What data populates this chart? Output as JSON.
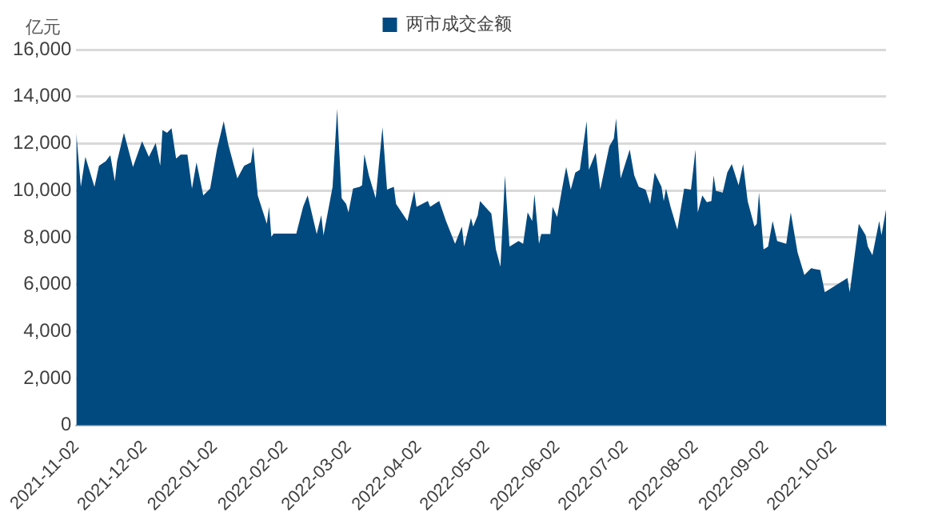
{
  "chart_data": {
    "type": "area",
    "ylabel": "亿元",
    "legend": "top",
    "grid": "y",
    "x": [
      "2021-11-02",
      "2021-11-04",
      "2021-11-06",
      "2021-11-10",
      "2021-11-12",
      "2021-11-15",
      "2021-11-17",
      "2021-11-19",
      "2021-11-20",
      "2021-11-23",
      "2021-11-27",
      "2021-12-01",
      "2021-12-04",
      "2021-12-07",
      "2021-12-09",
      "2021-12-10",
      "2021-12-12",
      "2021-12-14",
      "2021-12-16",
      "2021-12-18",
      "2021-12-21",
      "2021-12-23",
      "2021-12-25",
      "2021-12-28",
      "2021-12-31",
      "2022-01-03",
      "2022-01-06",
      "2022-01-08",
      "2022-01-12",
      "2022-01-15",
      "2022-01-18",
      "2022-01-19",
      "2022-01-21",
      "2022-01-25",
      "2022-01-26",
      "2022-01-27",
      "2022-01-28",
      "2022-02-07",
      "2022-02-10",
      "2022-02-12",
      "2022-02-16",
      "2022-02-18",
      "2022-02-19",
      "2022-02-23",
      "2022-02-25",
      "2022-02-27",
      "2022-03-01",
      "2022-03-02",
      "2022-03-04",
      "2022-03-07",
      "2022-03-08",
      "2022-03-09",
      "2022-03-11",
      "2022-03-14",
      "2022-03-17",
      "2022-03-19",
      "2022-03-22",
      "2022-03-23",
      "2022-03-28",
      "2022-03-31",
      "2022-04-01",
      "2022-04-06",
      "2022-04-07",
      "2022-04-11",
      "2022-04-14",
      "2022-04-18",
      "2022-04-21",
      "2022-04-22",
      "2022-04-25",
      "2022-04-26",
      "2022-04-28",
      "2022-04-29",
      "2022-05-04",
      "2022-05-06",
      "2022-05-08",
      "2022-05-10",
      "2022-05-12",
      "2022-05-16",
      "2022-05-18",
      "2022-05-20",
      "2022-05-22",
      "2022-05-23",
      "2022-05-25",
      "2022-05-26",
      "2022-05-30",
      "2022-05-31",
      "2022-06-02",
      "2022-06-05",
      "2022-06-06",
      "2022-06-08",
      "2022-06-10",
      "2022-06-12",
      "2022-06-15",
      "2022-06-16",
      "2022-06-19",
      "2022-06-21",
      "2022-06-25",
      "2022-06-27",
      "2022-06-28",
      "2022-06-30",
      "2022-07-04",
      "2022-07-06",
      "2022-07-08",
      "2022-07-11",
      "2022-07-13",
      "2022-07-15",
      "2022-07-18",
      "2022-07-19",
      "2022-07-20",
      "2022-07-22",
      "2022-07-25",
      "2022-07-28",
      "2022-07-31",
      "2022-08-02",
      "2022-08-03",
      "2022-08-05",
      "2022-08-07",
      "2022-08-09",
      "2022-08-10",
      "2022-08-11",
      "2022-08-14",
      "2022-08-16",
      "2022-08-18",
      "2022-08-21",
      "2022-08-23",
      "2022-08-25",
      "2022-08-28",
      "2022-08-29",
      "2022-08-30",
      "2022-09-01",
      "2022-09-03",
      "2022-09-05",
      "2022-09-07",
      "2022-09-11",
      "2022-09-13",
      "2022-09-16",
      "2022-09-19",
      "2022-09-22",
      "2022-09-26",
      "2022-09-28",
      "2022-10-08",
      "2022-10-09",
      "2022-10-11",
      "2022-10-13",
      "2022-10-16",
      "2022-10-17",
      "2022-10-19",
      "2022-10-22",
      "2022-10-23",
      "2022-10-25"
    ],
    "series": [
      {
        "name": "两市成交金额",
        "color": "#004a80",
        "values": [
          12460,
          10160,
          11440,
          10160,
          11050,
          11250,
          11500,
          10400,
          11250,
          12460,
          11000,
          12100,
          11440,
          12020,
          11050,
          12580,
          12460,
          12650,
          11360,
          11530,
          11530,
          10080,
          11200,
          9790,
          10080,
          11740,
          12950,
          11960,
          10520,
          11050,
          11200,
          11880,
          9790,
          8580,
          9310,
          8030,
          8170,
          8170,
          9310,
          9790,
          8150,
          8950,
          8100,
          10160,
          13480,
          9670,
          9430,
          9070,
          10080,
          10160,
          10230,
          11540,
          10640,
          9670,
          12700,
          10040,
          10160,
          9430,
          8700,
          9990,
          9310,
          9550,
          9310,
          9550,
          8700,
          7730,
          8460,
          7610,
          8830,
          8460,
          8950,
          9550,
          9020,
          7490,
          6760,
          10640,
          7610,
          7850,
          7730,
          9070,
          8700,
          9840,
          7730,
          8150,
          8150,
          9310,
          8870,
          10520,
          11000,
          10040,
          10760,
          10880,
          12950,
          10880,
          11610,
          10040,
          11880,
          12220,
          13070,
          10520,
          11740,
          10640,
          10160,
          10040,
          9430,
          10760,
          10160,
          9550,
          10080,
          9310,
          8340,
          10080,
          10040,
          11740,
          9070,
          9790,
          9500,
          9550,
          10640,
          9990,
          9910,
          10760,
          11130,
          10230,
          11130,
          9550,
          8460,
          8580,
          9910,
          7490,
          7610,
          8700,
          7850,
          7730,
          9070,
          7370,
          6400,
          6690,
          6620,
          5670,
          6280,
          5670,
          7130,
          8580,
          8100,
          7610,
          7250,
          8700,
          8100,
          9190
        ]
      }
    ],
    "xlim": [
      "2021-11-02",
      "2022-10-25"
    ],
    "xticks": [
      "2021-11-02",
      "2021-12-02",
      "2022-01-02",
      "2022-02-02",
      "2022-03-02",
      "2022-04-02",
      "2022-05-02",
      "2022-06-02",
      "2022-07-02",
      "2022-08-02",
      "2022-09-02",
      "2022-10-02"
    ],
    "ylim": [
      0,
      16000
    ],
    "yticks": [
      0,
      {
        "value": 2000,
        "label": "2,000"
      },
      {
        "value": 4000,
        "label": "4,000"
      },
      {
        "value": 6000,
        "label": "6,000"
      },
      {
        "value": 8000,
        "label": "8,000"
      },
      {
        "value": 10000,
        "label": "10,000"
      },
      {
        "value": 12000,
        "label": "12,000"
      },
      {
        "value": 14000,
        "label": "14,000"
      },
      {
        "value": 16000,
        "label": "16,000"
      }
    ]
  }
}
